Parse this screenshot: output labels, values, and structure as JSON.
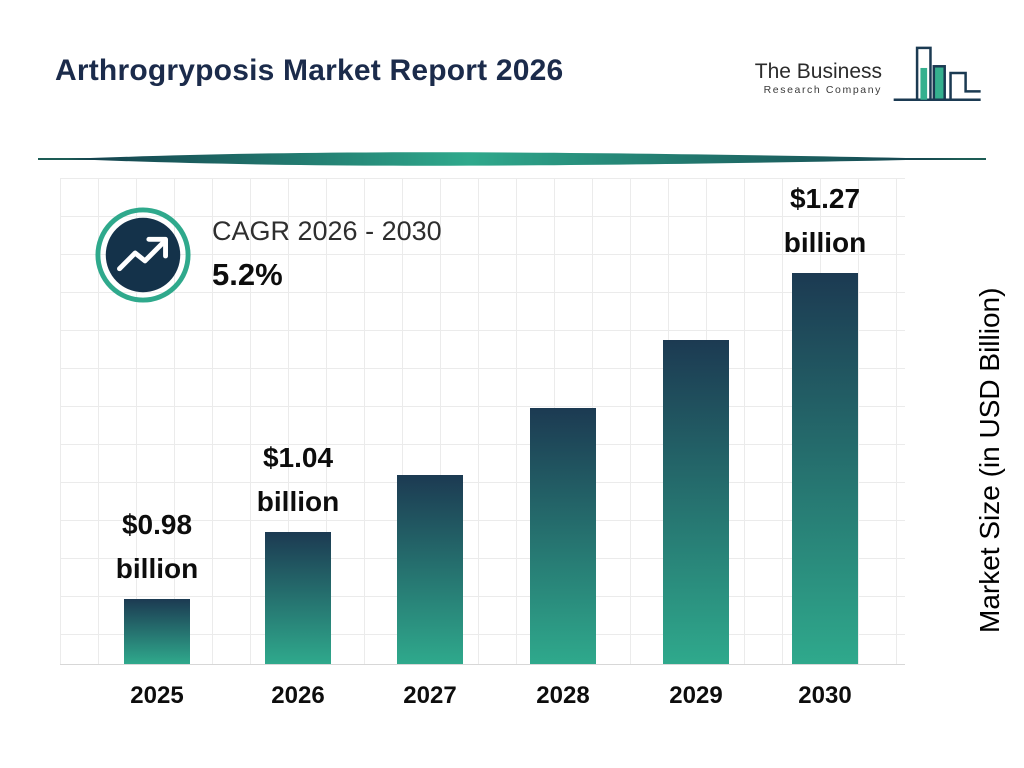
{
  "title": "Arthrogryposis Market Report 2026",
  "logo": {
    "name_line1": "The Business",
    "name_line2": "Research Company"
  },
  "cagr": {
    "label": "CAGR 2026 - 2030",
    "value": "5.2%"
  },
  "ylabel": "Market Size (in USD Billion)",
  "chart_data": {
    "type": "bar",
    "title": "Arthrogryposis Market Report 2026",
    "categories": [
      "2025",
      "2026",
      "2027",
      "2028",
      "2029",
      "2030"
    ],
    "values": [
      0.98,
      1.04,
      1.09,
      1.15,
      1.21,
      1.27
    ],
    "unit": "USD Billion",
    "xlabel": "",
    "ylabel": "Market Size (in USD Billion)",
    "grid": true,
    "legend": false,
    "annotations": [
      {
        "category": "2025",
        "lines": [
          "$0.98",
          "billion"
        ]
      },
      {
        "category": "2026",
        "lines": [
          "$1.04",
          "billion"
        ]
      },
      {
        "category": "2030",
        "lines": [
          "$1.27",
          "billion"
        ]
      }
    ]
  },
  "colors": {
    "title": "#1b2b4b",
    "bar_top": "#1c3a52",
    "bar_bottom": "#2fa98c",
    "accent_teal": "#2fa98c",
    "icon_circle": "#14324a",
    "grid": "#ebebeb"
  }
}
